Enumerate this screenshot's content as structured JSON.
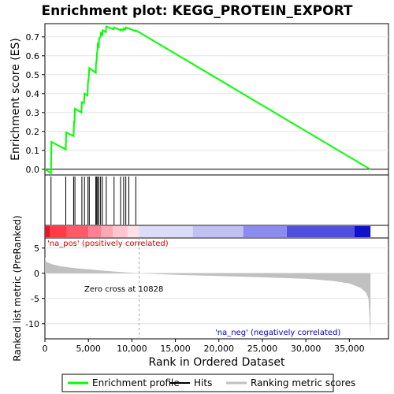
{
  "chart_data": {
    "type": "line",
    "title": "Enrichment plot: KEGG_PROTEIN_EXPORT",
    "es_panel": {
      "ylabel": "Enrichment score (ES)",
      "ylim": [
        -0.03,
        0.77
      ],
      "yticks": [
        "0.0",
        "0.1",
        "0.2",
        "0.3",
        "0.4",
        "0.5",
        "0.6",
        "0.7"
      ],
      "ytick_values": [
        0.0,
        0.1,
        0.2,
        0.3,
        0.4,
        0.5,
        0.6,
        0.7
      ],
      "line_color": "#00ff00",
      "series": [
        {
          "name": "Enrichment profile",
          "x": [
            0,
            700,
            750,
            2400,
            2450,
            3300,
            3350,
            3400,
            3450,
            4200,
            4250,
            4500,
            4550,
            4900,
            4950,
            5050,
            5100,
            5850,
            5870,
            5950,
            5970,
            6050,
            6080,
            6200,
            6220,
            6400,
            6420,
            6600,
            6640,
            7000,
            7050,
            7900,
            7950,
            8700,
            8720,
            9000,
            9050,
            9250,
            9300,
            9600,
            9650,
            10400,
            10450,
            37400
          ],
          "y": [
            0.0,
            -0.02,
            0.145,
            0.105,
            0.195,
            0.175,
            0.25,
            0.25,
            0.32,
            0.3,
            0.355,
            0.35,
            0.4,
            0.39,
            0.455,
            0.49,
            0.535,
            0.51,
            0.555,
            0.58,
            0.61,
            0.63,
            0.66,
            0.65,
            0.69,
            0.7,
            0.72,
            0.71,
            0.735,
            0.725,
            0.755,
            0.74,
            0.75,
            0.735,
            0.74,
            0.735,
            0.745,
            0.74,
            0.75,
            0.745,
            0.745,
            0.73,
            0.735,
            0.0
          ]
        }
      ]
    },
    "hits_panel": {
      "hits_x": [
        700,
        2400,
        3300,
        3450,
        4250,
        4550,
        4950,
        5100,
        5850,
        5950,
        6050,
        6200,
        6400,
        6600,
        7050,
        7950,
        8700,
        9050,
        9300,
        9650,
        10450
      ]
    },
    "metric_panel": {
      "ylabel": "Ranked list metric (PreRanked)",
      "ylim": [
        -13,
        7
      ],
      "yticks": [
        "5",
        "0",
        "-5",
        "-10"
      ],
      "ytick_values": [
        5,
        0,
        -5,
        -10
      ],
      "fill_color": "#c0c0c0",
      "profile_x": [
        0,
        150,
        500,
        1000,
        2000,
        3500,
        5500,
        8000,
        10828,
        15000,
        20000,
        25000,
        30000,
        33000,
        35000,
        36300,
        36900,
        37200,
        37300,
        37400,
        37430
      ],
      "profile_y": [
        3.2,
        2.3,
        2.0,
        1.7,
        1.35,
        1.0,
        0.7,
        0.35,
        0.0,
        -0.3,
        -0.55,
        -0.8,
        -1.1,
        -1.5,
        -2.0,
        -2.9,
        -3.8,
        -5.0,
        -8.0,
        -12.0,
        -12.2
      ],
      "zero_cross_label": "Zero cross at 10828",
      "zero_cross_x": 10828,
      "pos_label": "'na_pos' (positively correlated)",
      "neg_label": "'na_neg' (negatively correlated)",
      "pos_label_color": "#cc0000",
      "neg_label_color": "#0000cc"
    },
    "heat_bar": {
      "segments": [
        {
          "x0": 0,
          "x1": 600,
          "color": "#e01828"
        },
        {
          "x0": 600,
          "x1": 2500,
          "color": "#ff3a48"
        },
        {
          "x0": 2500,
          "x1": 5000,
          "color": "#ff5a68"
        },
        {
          "x0": 5000,
          "x1": 6500,
          "color": "#ff8090"
        },
        {
          "x0": 6500,
          "x1": 7800,
          "color": "#ffa8b4"
        },
        {
          "x0": 7800,
          "x1": 9500,
          "color": "#ffc6d0"
        },
        {
          "x0": 9500,
          "x1": 10800,
          "color": "#ffe0e6"
        },
        {
          "x0": 10800,
          "x1": 17000,
          "color": "#dcdcf8"
        },
        {
          "x0": 17000,
          "x1": 22800,
          "color": "#c0c0f4"
        },
        {
          "x0": 22800,
          "x1": 27800,
          "color": "#8c8cf0"
        },
        {
          "x0": 27800,
          "x1": 35600,
          "color": "#5050e0"
        },
        {
          "x0": 35600,
          "x1": 37430,
          "color": "#1010c8"
        }
      ]
    },
    "x_axis": {
      "label": "Rank in Ordered Dataset",
      "xlim": [
        0,
        39500
      ],
      "ticks": [
        "0",
        "5,000",
        "10,000",
        "15,000",
        "20,000",
        "25,000",
        "30,000",
        "35,000"
      ],
      "tick_values": [
        0,
        5000,
        10000,
        15000,
        20000,
        25000,
        30000,
        35000
      ]
    },
    "legend": {
      "placement": "bottom",
      "items": [
        {
          "label": "Enrichment profile",
          "color": "#00ff00"
        },
        {
          "label": "Hits",
          "color": "#000000"
        },
        {
          "label": "Ranking metric scores",
          "color": "#c0c0c0"
        }
      ]
    }
  }
}
